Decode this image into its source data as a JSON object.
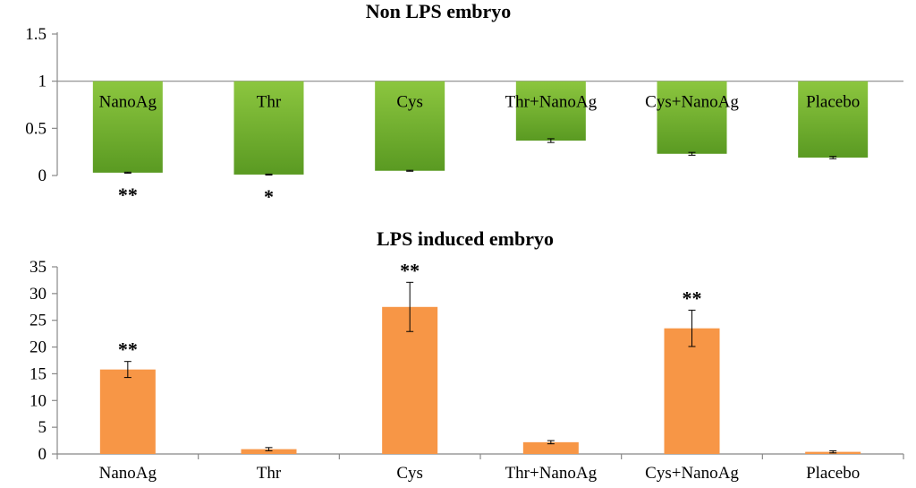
{
  "chart_data": [
    {
      "type": "bar",
      "title": "Non LPS embryo",
      "categories": [
        "NanoAg",
        "Thr",
        "Cys",
        "Thr+NanoAg",
        "Cys+NanoAg",
        "Placebo"
      ],
      "baseline": 1,
      "values": [
        0.03,
        0.01,
        0.05,
        0.37,
        0.23,
        0.19
      ],
      "errors": [
        0.005,
        0.005,
        0.005,
        0.02,
        0.015,
        0.012
      ],
      "significance": [
        "**",
        "*",
        "",
        "",
        "",
        ""
      ],
      "ylim": [
        0,
        1.5
      ],
      "yticks": [
        "1.5",
        "1",
        "0.5",
        "0"
      ],
      "bar_color_top": "#8cc63f",
      "bar_color_bottom": "#5a9a22",
      "category_label_position": "inside-top"
    },
    {
      "type": "bar",
      "title": "LPS induced embryo",
      "categories": [
        "NanoAg",
        "Thr",
        "Cys",
        "Thr+NanoAg",
        "Cys+NanoAg",
        "Placebo"
      ],
      "values": [
        15.8,
        0.9,
        27.5,
        2.2,
        23.5,
        0.4
      ],
      "errors": [
        1.5,
        0.3,
        4.6,
        0.3,
        3.4,
        0.2
      ],
      "significance": [
        "**",
        "",
        "**",
        "",
        "**",
        ""
      ],
      "ylim": [
        0,
        35
      ],
      "yticks": [
        "35",
        "30",
        "25",
        "20",
        "15",
        "10",
        "5",
        "0"
      ],
      "bar_color": "#f79646",
      "category_label_position": "below-axis"
    }
  ]
}
